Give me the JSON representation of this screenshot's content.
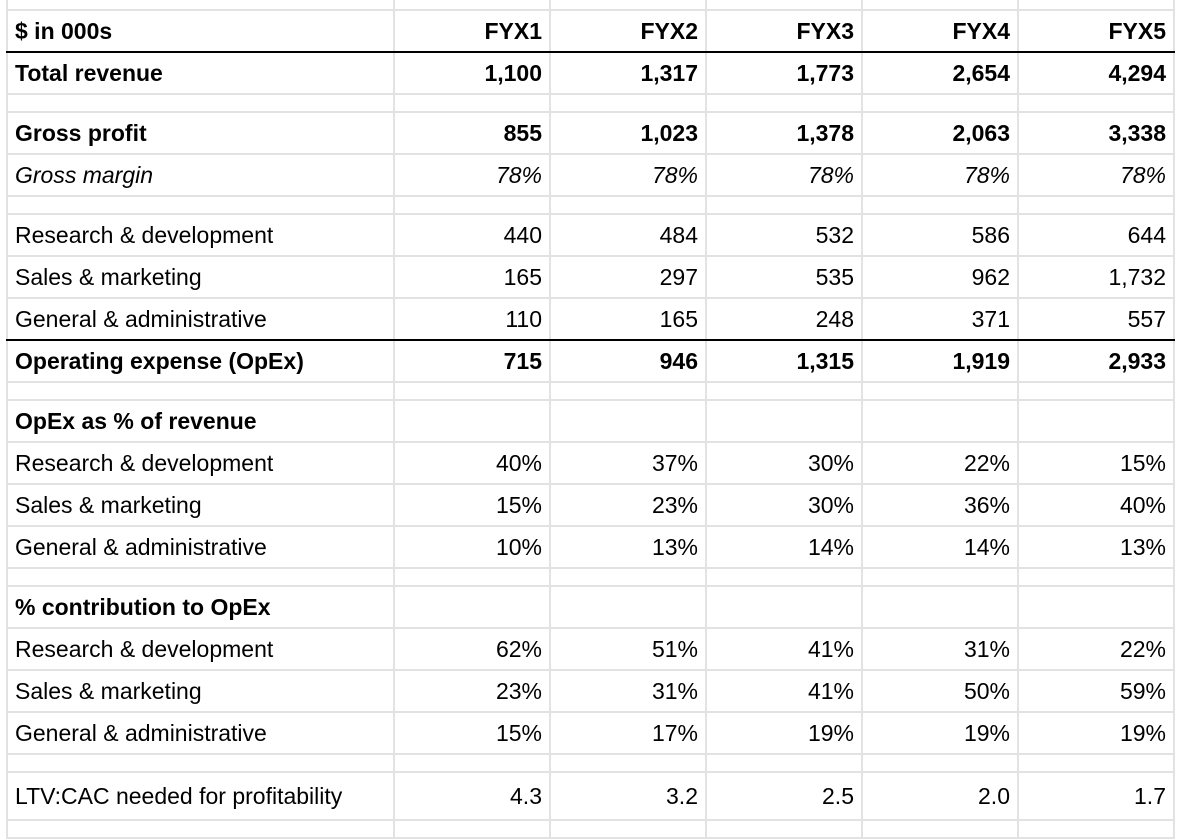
{
  "sheet": {
    "header": {
      "label": "$ in 000s",
      "columns": [
        "FYX1",
        "FYX2",
        "FYX3",
        "FYX4",
        "FYX5"
      ]
    },
    "rows": [
      {
        "type": "row",
        "style": "b",
        "label": "Total revenue",
        "values": [
          "1,100",
          "1,317",
          "1,773",
          "2,654",
          "4,294"
        ]
      },
      {
        "type": "spacer"
      },
      {
        "type": "row",
        "style": "b",
        "label": "Gross profit",
        "values": [
          "855",
          "1,023",
          "1,378",
          "2,063",
          "3,338"
        ]
      },
      {
        "type": "row",
        "style": "i",
        "label": "Gross margin",
        "values": [
          "78%",
          "78%",
          "78%",
          "78%",
          "78%"
        ]
      },
      {
        "type": "spacer"
      },
      {
        "type": "row",
        "style": "",
        "label": "Research & development",
        "values": [
          "440",
          "484",
          "532",
          "586",
          "644"
        ]
      },
      {
        "type": "row",
        "style": "",
        "label": "Sales & marketing",
        "values": [
          "165",
          "297",
          "535",
          "962",
          "1,732"
        ]
      },
      {
        "type": "row",
        "style": "ub",
        "label": "General & administrative",
        "values": [
          "110",
          "165",
          "248",
          "371",
          "557"
        ]
      },
      {
        "type": "row",
        "style": "b",
        "label": "Operating expense (OpEx)",
        "values": [
          "715",
          "946",
          "1,315",
          "1,919",
          "2,933"
        ]
      },
      {
        "type": "spacer"
      },
      {
        "type": "row",
        "style": "b",
        "label": "OpEx as % of revenue",
        "values": [
          "",
          "",
          "",
          "",
          ""
        ]
      },
      {
        "type": "row",
        "style": "",
        "label": "Research & development",
        "values": [
          "40%",
          "37%",
          "30%",
          "22%",
          "15%"
        ]
      },
      {
        "type": "row",
        "style": "",
        "label": "Sales & marketing",
        "values": [
          "15%",
          "23%",
          "30%",
          "36%",
          "40%"
        ]
      },
      {
        "type": "row",
        "style": "",
        "label": "General & administrative",
        "values": [
          "10%",
          "13%",
          "14%",
          "14%",
          "13%"
        ]
      },
      {
        "type": "spacer"
      },
      {
        "type": "row",
        "style": "b",
        "label": "% contribution to OpEx",
        "values": [
          "",
          "",
          "",
          "",
          ""
        ]
      },
      {
        "type": "row",
        "style": "",
        "label": "Research & development",
        "values": [
          "62%",
          "51%",
          "41%",
          "31%",
          "22%"
        ]
      },
      {
        "type": "row",
        "style": "",
        "label": "Sales & marketing",
        "values": [
          "23%",
          "31%",
          "41%",
          "50%",
          "59%"
        ]
      },
      {
        "type": "row",
        "style": "",
        "label": "General & administrative",
        "values": [
          "15%",
          "17%",
          "19%",
          "19%",
          "19%"
        ]
      },
      {
        "type": "spacer"
      },
      {
        "type": "row",
        "style": "tall",
        "label": "LTV:CAC needed for profitability",
        "values": [
          "4.3",
          "3.2",
          "2.5",
          "2.0",
          "1.7"
        ]
      },
      {
        "type": "spacer"
      }
    ]
  }
}
